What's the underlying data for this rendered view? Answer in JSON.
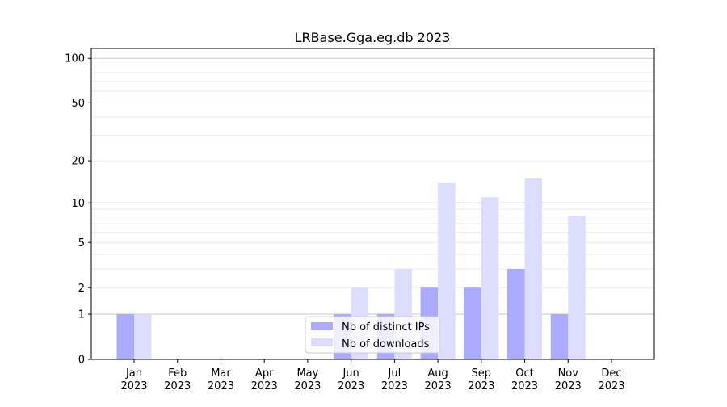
{
  "chart_data": {
    "type": "bar",
    "title": "LRBase.Gga.eg.db 2023",
    "xlabel": "",
    "ylabel": "",
    "yscale": "log(1+y)",
    "ylim": [
      0,
      116
    ],
    "yticks": [
      0,
      1,
      2,
      5,
      10,
      20,
      50,
      100
    ],
    "ytick_labels": [
      "0",
      "1",
      "2",
      "5",
      "10",
      "20",
      "50",
      "100"
    ],
    "categories": [
      [
        "Jan",
        "2023"
      ],
      [
        "Feb",
        "2023"
      ],
      [
        "Mar",
        "2023"
      ],
      [
        "Apr",
        "2023"
      ],
      [
        "May",
        "2023"
      ],
      [
        "Jun",
        "2023"
      ],
      [
        "Jul",
        "2023"
      ],
      [
        "Aug",
        "2023"
      ],
      [
        "Sep",
        "2023"
      ],
      [
        "Oct",
        "2023"
      ],
      [
        "Nov",
        "2023"
      ],
      [
        "Dec",
        "2023"
      ]
    ],
    "series": [
      {
        "name": "Nb of distinct IPs",
        "color": "#aaaaff",
        "values": [
          1,
          0,
          0,
          0,
          0,
          1,
          1,
          2,
          2,
          3,
          1,
          0
        ]
      },
      {
        "name": "Nb of downloads",
        "color": "#ddddff",
        "values": [
          1,
          0,
          0,
          0,
          0,
          2,
          3,
          14,
          11,
          15,
          8,
          0
        ]
      }
    ],
    "grid": true,
    "legend_position": "lower-center"
  }
}
